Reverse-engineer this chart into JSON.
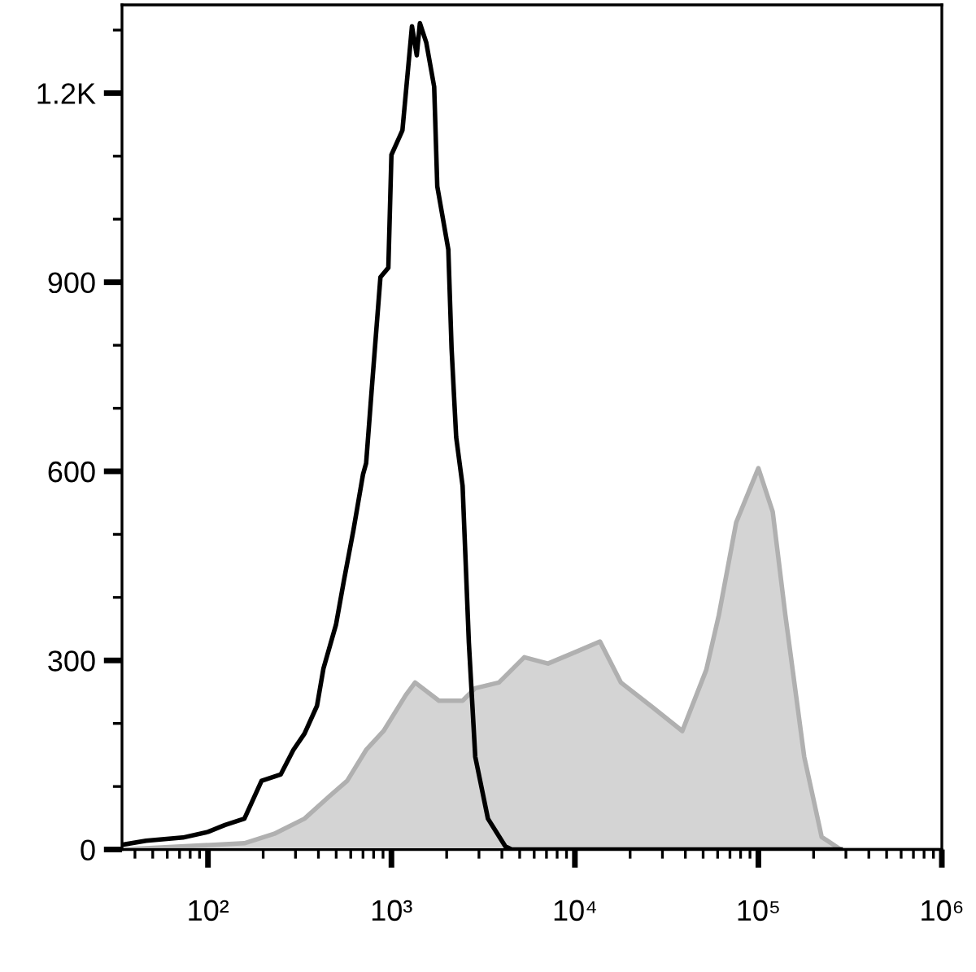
{
  "chart_data": {
    "type": "area",
    "log": "x",
    "grid": false,
    "xlim": [
      34,
      1000000
    ],
    "ylim": [
      0,
      1340
    ],
    "xticks": [
      {
        "value": 40,
        "label": null
      },
      {
        "value": 50,
        "label": null
      },
      {
        "value": 60,
        "label": null
      },
      {
        "value": 70,
        "label": null
      },
      {
        "value": 80,
        "label": null
      },
      {
        "value": 90,
        "label": null
      },
      {
        "value": 100,
        "label": "10²"
      },
      {
        "value": 200,
        "label": null
      },
      {
        "value": 300,
        "label": null
      },
      {
        "value": 400,
        "label": null
      },
      {
        "value": 500,
        "label": null
      },
      {
        "value": 600,
        "label": null
      },
      {
        "value": 700,
        "label": null
      },
      {
        "value": 800,
        "label": null
      },
      {
        "value": 900,
        "label": null
      },
      {
        "value": 1000,
        "label": "10³"
      },
      {
        "value": 2000,
        "label": null
      },
      {
        "value": 3000,
        "label": null
      },
      {
        "value": 4000,
        "label": null
      },
      {
        "value": 5000,
        "label": null
      },
      {
        "value": 6000,
        "label": null
      },
      {
        "value": 7000,
        "label": null
      },
      {
        "value": 8000,
        "label": null
      },
      {
        "value": 9000,
        "label": null
      },
      {
        "value": 10000,
        "label": "10⁴"
      },
      {
        "value": 20000,
        "label": null
      },
      {
        "value": 30000,
        "label": null
      },
      {
        "value": 40000,
        "label": null
      },
      {
        "value": 50000,
        "label": null
      },
      {
        "value": 60000,
        "label": null
      },
      {
        "value": 70000,
        "label": null
      },
      {
        "value": 80000,
        "label": null
      },
      {
        "value": 90000,
        "label": null
      },
      {
        "value": 100000,
        "label": "10⁵"
      },
      {
        "value": 200000,
        "label": null
      },
      {
        "value": 300000,
        "label": null
      },
      {
        "value": 400000,
        "label": null
      },
      {
        "value": 500000,
        "label": null
      },
      {
        "value": 600000,
        "label": null
      },
      {
        "value": 700000,
        "label": null
      },
      {
        "value": 800000,
        "label": null
      },
      {
        "value": 900000,
        "label": null
      },
      {
        "value": 1000000,
        "label": "10⁶"
      }
    ],
    "yticks": [
      0,
      {
        "value": 100,
        "label": null
      },
      {
        "value": 200,
        "label": null
      },
      300,
      {
        "value": 400,
        "label": null
      },
      {
        "value": 500,
        "label": null
      },
      600,
      {
        "value": 700,
        "label": null
      },
      {
        "value": 800,
        "label": null
      },
      900,
      {
        "value": 1000,
        "label": null
      },
      {
        "value": 1100,
        "label": null
      },
      {
        "value": 1200,
        "label": "1.2K"
      },
      {
        "value": 1300,
        "label": null
      }
    ],
    "series": [
      {
        "color": "#b0b0b0",
        "x": [
          34,
          158,
          230,
          336,
          461,
          574,
          728,
          906,
          1197,
          1346,
          1815,
          2443,
          2864,
          3855,
          5297,
          7134,
          10400,
          13700,
          17800,
          26400,
          38500,
          52000,
          60900,
          75700,
          100000,
          119700,
          140300,
          177800,
          221300,
          280600,
          1000000
        ],
        "values": [
          0,
          10,
          25,
          49,
          85,
          109,
          158,
          188,
          245,
          265,
          236,
          236,
          256,
          265,
          305,
          295,
          315,
          330,
          265,
          226,
          188,
          285,
          372,
          519,
          605,
          536,
          372,
          147,
          20,
          0,
          0
        ]
      },
      {
        "type": "line",
        "color": "#000000",
        "x": [
          35,
          46,
          73,
          100,
          124,
          158,
          196,
          249,
          292,
          336,
          393,
          426,
          499,
          551,
          621,
          700,
          728,
          789,
          871,
          962,
          1000,
          1148,
          1294,
          1374,
          1429,
          1549,
          1710,
          1778,
          2042,
          2128,
          2254,
          2443,
          2643,
          2864,
          3357,
          4178,
          4519,
          280600
        ],
        "values": [
          8,
          14,
          19,
          28,
          39,
          49,
          109,
          119,
          158,
          184,
          228,
          287,
          357,
          427,
          507,
          595,
          613,
          747,
          908,
          923,
          1102,
          1141,
          1306,
          1260,
          1311,
          1280,
          1210,
          1052,
          952,
          794,
          654,
          577,
          328,
          147,
          49,
          5,
          0,
          0
        ]
      }
    ]
  }
}
